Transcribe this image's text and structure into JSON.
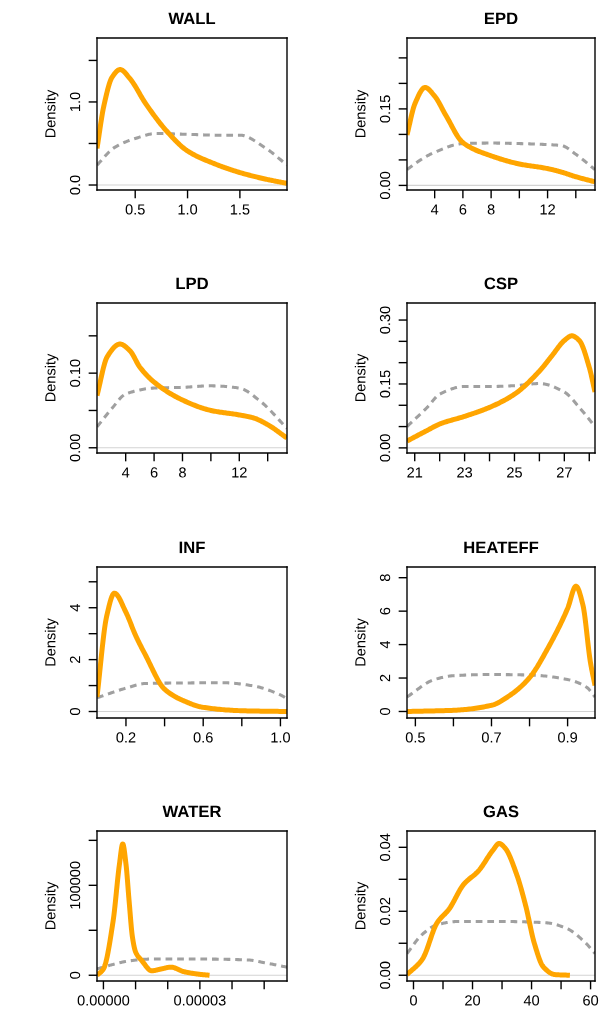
{
  "chart_data": [
    {
      "type": "line",
      "title": "WALL",
      "ylabel": "Density",
      "xlim": [
        0.135,
        1.95
      ],
      "ylim": [
        -0.06,
        1.77
      ],
      "xticks": [
        0.5,
        {
          "value": 1.0,
          "label": "1.0"
        },
        1.5
      ],
      "yticks": [
        {
          "value": 0,
          "label": "0.0"
        },
        {
          "value": 0.5,
          "label": null
        },
        {
          "value": 1.0,
          "label": "1.0"
        },
        {
          "value": 1.5,
          "label": null
        }
      ],
      "ref_lines": [
        {
          "axis": "y",
          "value": 0,
          "color": "#d3d3d3"
        }
      ],
      "series": [
        {
          "color": "#a0a0a0",
          "line_style": "dashed",
          "x": [
            0.135,
            0.3,
            0.5,
            0.7,
            1.0,
            1.3,
            1.5,
            1.75,
            1.95
          ],
          "values": [
            0.24,
            0.45,
            0.56,
            0.62,
            0.61,
            0.6,
            0.6,
            0.44,
            0.24
          ]
        },
        {
          "color": "#ffa500",
          "line_style": "solid",
          "x": [
            0.135,
            0.2,
            0.28,
            0.356,
            0.45,
            0.6,
            0.8,
            1.0,
            1.25,
            1.5,
            1.75,
            1.95
          ],
          "values": [
            0.44,
            0.95,
            1.3,
            1.39,
            1.28,
            0.98,
            0.65,
            0.41,
            0.26,
            0.15,
            0.07,
            0.02
          ]
        }
      ]
    },
    {
      "type": "line",
      "title": "EPD",
      "ylabel": "Density",
      "xlim": [
        2.04,
        15.36
      ],
      "ylim": [
        -0.009,
        0.289
      ],
      "xticks": [
        4,
        6,
        8,
        {
          "value": 10,
          "label": null
        },
        12,
        {
          "value": 14,
          "label": null
        }
      ],
      "yticks": [
        {
          "value": 0,
          "label": "0.00"
        },
        {
          "value": 0.05,
          "label": null
        },
        {
          "value": 0.1,
          "label": null
        },
        {
          "value": 0.15,
          "label": "0.15"
        },
        {
          "value": 0.2,
          "label": null
        },
        {
          "value": 0.25,
          "label": null
        }
      ],
      "ref_lines": [
        {
          "axis": "y",
          "value": 0,
          "color": "#d3d3d3"
        }
      ],
      "series": [
        {
          "color": "#a0a0a0",
          "line_style": "dashed",
          "x": [
            2.04,
            3,
            4,
            6,
            8,
            10,
            12,
            13,
            14,
            15.36
          ],
          "values": [
            0.031,
            0.05,
            0.065,
            0.082,
            0.083,
            0.082,
            0.08,
            0.078,
            0.061,
            0.031
          ]
        },
        {
          "color": "#ffa500",
          "line_style": "solid",
          "x": [
            2.04,
            2.6,
            3.32,
            4,
            4.8,
            6,
            8,
            10,
            12,
            13,
            14,
            15.36
          ],
          "values": [
            0.099,
            0.16,
            0.192,
            0.175,
            0.137,
            0.084,
            0.058,
            0.042,
            0.033,
            0.026,
            0.017,
            0.007
          ]
        }
      ]
    },
    {
      "type": "line",
      "title": "LPD",
      "ylabel": "Density",
      "xlim": [
        1.98,
        15.36
      ],
      "ylim": [
        -0.007,
        0.194
      ],
      "xticks": [
        4,
        6,
        8,
        {
          "value": 10,
          "label": null
        },
        12,
        {
          "value": 14,
          "label": null
        }
      ],
      "yticks": [
        {
          "value": 0,
          "label": "0.00"
        },
        {
          "value": 0.05,
          "label": null
        },
        {
          "value": 0.1,
          "label": "0.10"
        },
        {
          "value": 0.15,
          "label": null
        }
      ],
      "ref_lines": [
        {
          "axis": "y",
          "value": 0,
          "color": "#d3d3d3"
        }
      ],
      "series": [
        {
          "color": "#a0a0a0",
          "line_style": "dashed",
          "x": [
            1.98,
            3,
            4,
            6,
            8,
            10,
            12,
            13.5,
            15.36
          ],
          "values": [
            0.028,
            0.052,
            0.072,
            0.08,
            0.081,
            0.083,
            0.08,
            0.062,
            0.026
          ]
        },
        {
          "color": "#ffa500",
          "line_style": "solid",
          "x": [
            1.98,
            2.7,
            3.6,
            4.3,
            5,
            6,
            8,
            10,
            12,
            13,
            14,
            15.36
          ],
          "values": [
            0.07,
            0.122,
            0.139,
            0.13,
            0.108,
            0.088,
            0.064,
            0.05,
            0.044,
            0.04,
            0.031,
            0.013
          ]
        }
      ]
    },
    {
      "type": "line",
      "title": "CSP",
      "ylabel": "Density",
      "xlim": [
        20.69,
        28.23
      ],
      "ylim": [
        -0.012,
        0.34
      ],
      "xticks": [
        21,
        {
          "value": 22,
          "label": null
        },
        23,
        {
          "value": 24,
          "label": null
        },
        25,
        {
          "value": 26,
          "label": null
        },
        27,
        {
          "value": 28,
          "label": null
        }
      ],
      "yticks": [
        {
          "value": 0,
          "label": "0.00"
        },
        {
          "value": 0.05,
          "label": null
        },
        {
          "value": 0.1,
          "label": null
        },
        {
          "value": 0.15,
          "label": "0.15"
        },
        {
          "value": 0.2,
          "label": null
        },
        {
          "value": 0.25,
          "label": null
        },
        {
          "value": 0.3,
          "label": "0.30"
        }
      ],
      "ref_lines": [
        {
          "axis": "y",
          "value": 0,
          "color": "#d3d3d3"
        }
      ],
      "series": [
        {
          "color": "#a0a0a0",
          "line_style": "dashed",
          "x": [
            20.69,
            21.5,
            22,
            23,
            24,
            25,
            26,
            27,
            27.6,
            28.23
          ],
          "values": [
            0.05,
            0.095,
            0.126,
            0.144,
            0.144,
            0.146,
            0.151,
            0.131,
            0.095,
            0.05
          ]
        },
        {
          "color": "#ffa500",
          "line_style": "solid",
          "x": [
            20.69,
            21.5,
            22,
            23,
            24,
            25,
            26,
            26.5,
            27,
            27.3,
            27.6,
            28,
            28.23
          ],
          "values": [
            0.016,
            0.041,
            0.056,
            0.074,
            0.095,
            0.126,
            0.18,
            0.216,
            0.252,
            0.263,
            0.252,
            0.189,
            0.131
          ]
        }
      ]
    },
    {
      "type": "line",
      "title": "INF",
      "ylabel": "Density",
      "xlim": [
        0.05,
        1.034
      ],
      "ylim": [
        -0.25,
        5.57
      ],
      "xticks": [
        0.2,
        {
          "value": 0.4,
          "label": null
        },
        0.6,
        {
          "value": 0.8,
          "label": null
        },
        {
          "value": 1.0,
          "label": "1.0"
        }
      ],
      "yticks": [
        0,
        {
          "value": 1,
          "label": null
        },
        2,
        {
          "value": 3,
          "label": null
        },
        4,
        {
          "value": 5,
          "label": null
        }
      ],
      "ref_lines": [
        {
          "axis": "y",
          "value": 0,
          "color": "#d3d3d3"
        }
      ],
      "series": [
        {
          "color": "#a0a0a0",
          "line_style": "dashed",
          "x": [
            0.05,
            0.2,
            0.3,
            0.5,
            0.7,
            0.85,
            1.0,
            1.034
          ],
          "values": [
            0.53,
            0.9,
            1.08,
            1.1,
            1.11,
            1.0,
            0.64,
            0.49
          ]
        },
        {
          "color": "#ffa500",
          "line_style": "solid",
          "x": [
            0.05,
            0.1,
            0.14,
            0.2,
            0.25,
            0.3,
            0.4,
            0.5,
            0.6,
            0.8,
            1.034
          ],
          "values": [
            0.56,
            3.67,
            4.56,
            3.82,
            2.93,
            2.19,
            0.86,
            0.41,
            0.16,
            0.03,
            0
          ]
        }
      ]
    },
    {
      "type": "line",
      "title": "HEATEFF",
      "ylabel": "Density",
      "xlim": [
        0.478,
        0.972
      ],
      "ylim": [
        -0.39,
        8.64
      ],
      "xticks": [
        0.5,
        {
          "value": 0.6,
          "label": null
        },
        0.7,
        {
          "value": 0.8,
          "label": null
        },
        0.9
      ],
      "yticks": [
        0,
        2,
        4,
        6,
        8
      ],
      "ref_lines": [
        {
          "axis": "y",
          "value": 0,
          "color": "#d3d3d3"
        }
      ],
      "series": [
        {
          "color": "#a0a0a0",
          "line_style": "dashed",
          "x": [
            0.478,
            0.55,
            0.6,
            0.7,
            0.8,
            0.9,
            0.95,
            0.972
          ],
          "values": [
            0.87,
            1.91,
            2.14,
            2.21,
            2.18,
            1.91,
            1.45,
            0.87
          ]
        },
        {
          "color": "#ffa500",
          "line_style": "solid",
          "x": [
            0.478,
            0.6,
            0.7,
            0.75,
            0.8,
            0.85,
            0.9,
            0.922,
            0.94,
            0.96,
            0.972
          ],
          "values": [
            0,
            0.07,
            0.37,
            0.99,
            2.02,
            3.86,
            6.16,
            7.49,
            6.39,
            2.94,
            1.56
          ]
        }
      ]
    },
    {
      "type": "line",
      "title": "WATER",
      "ylabel": "Density",
      "xlim": [
        -2e-06,
        5.71e-05
      ],
      "ylim": [
        -6400,
        160400
      ],
      "xticks": [
        {
          "value": 0,
          "label": "0.00000"
        },
        {
          "value": 1e-05,
          "label": null
        },
        {
          "value": 2e-05,
          "label": null
        },
        {
          "value": 3e-05,
          "label": "0.00003"
        },
        {
          "value": 4e-05,
          "label": null
        },
        {
          "value": 5e-05,
          "label": null
        }
      ],
      "yticks": [
        0,
        {
          "value": 50000,
          "label": null
        },
        100000,
        {
          "value": 150000,
          "label": null
        }
      ],
      "ref_lines": [
        {
          "axis": "y",
          "value": 0,
          "color": "#d3d3d3"
        }
      ],
      "series": [
        {
          "color": "#a0a0a0",
          "line_style": "dashed",
          "x": [
            -2e-06,
            3e-06,
            8e-06,
            1.5e-05,
            3e-05,
            4.5e-05,
            5e-05,
            5.71e-05
          ],
          "values": [
            7000,
            12000,
            16000,
            18000,
            18000,
            17000,
            14000,
            9000
          ]
        },
        {
          "color": "#ffa500",
          "line_style": "solid",
          "x": [
            -2e-06,
            0,
            3e-06,
            5e-06,
            6e-06,
            7e-06,
            8e-06,
            9e-06,
            1e-05,
            1.2e-05,
            1.5e-05,
            1.8e-05,
            2.1e-05,
            2.5e-05,
            3e-05,
            3.3e-05
          ],
          "values": [
            0,
            7000,
            60000,
            124000,
            146000,
            124000,
            82000,
            43000,
            26000,
            16000,
            5000,
            7000,
            9000,
            4000,
            1000,
            0
          ]
        }
      ]
    },
    {
      "type": "line",
      "title": "GAS",
      "ylabel": "Density",
      "xlim": [
        -2.2,
        61.5
      ],
      "ylim": [
        -0.0018,
        0.0451
      ],
      "xticks": [
        0,
        {
          "value": 10,
          "label": null
        },
        20,
        {
          "value": 30,
          "label": null
        },
        40,
        {
          "value": 50,
          "label": null
        },
        60
      ],
      "yticks": [
        {
          "value": 0,
          "label": "0.00"
        },
        {
          "value": 0.01,
          "label": null
        },
        {
          "value": 0.02,
          "label": "0.02"
        },
        {
          "value": 0.03,
          "label": null
        },
        {
          "value": 0.04,
          "label": "0.04"
        }
      ],
      "ref_lines": [
        {
          "axis": "y",
          "value": 0,
          "color": "#d3d3d3"
        }
      ],
      "series": [
        {
          "color": "#a0a0a0",
          "line_style": "dashed",
          "x": [
            -2.2,
            3,
            8,
            15,
            30,
            45,
            52,
            58,
            61.5
          ],
          "values": [
            0.0068,
            0.0128,
            0.0158,
            0.0168,
            0.0168,
            0.0164,
            0.0146,
            0.0104,
            0.0068
          ]
        },
        {
          "color": "#ffa500",
          "line_style": "solid",
          "x": [
            -2.2,
            3,
            8,
            12,
            17,
            22,
            27,
            29,
            31,
            35,
            38,
            41,
            44,
            48,
            53
          ],
          "values": [
            0.0002,
            0.005,
            0.0164,
            0.0206,
            0.0284,
            0.0326,
            0.0392,
            0.0412,
            0.0398,
            0.0314,
            0.0218,
            0.0098,
            0.0026,
            0.0002,
            0
          ]
        }
      ]
    }
  ]
}
